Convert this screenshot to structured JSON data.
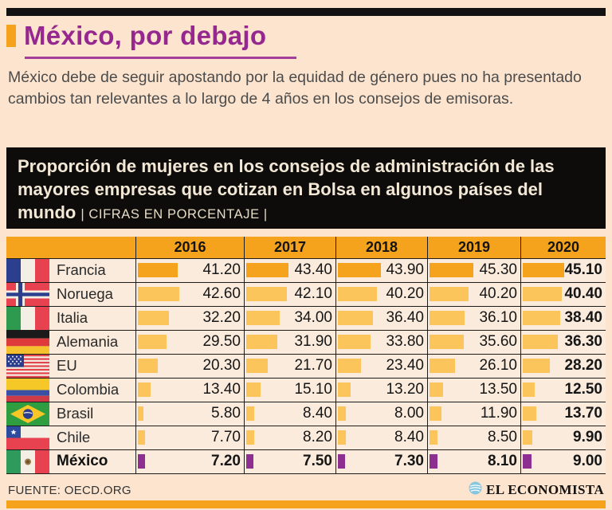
{
  "colors": {
    "accent_orange": "#F5A21C",
    "bar_light": "#FBC55C",
    "bar_leader": "#F5A21C",
    "bar_mexico": "#8C2F90",
    "title_magenta": "#96278F",
    "banner_bg": "#0D0C0A",
    "page_bg": "#FCE4CE",
    "cell_bg": "#FAEBDC",
    "logo_blue": "#85C7DE"
  },
  "header": {
    "title": "México, por debajo",
    "subtitle": "México debe de seguir apostando por la equidad de género pues no ha presentado cambios tan relevantes a lo largo de 4 años en los consejos de emisoras."
  },
  "banner": {
    "title": "Proporción de mujeres en los consejos de administración de las mayores empresas que cotizan en Bolsa en algunos países del mundo",
    "note": "| CIFRAS EN PORCENTAJE |"
  },
  "chart_data": {
    "type": "table",
    "title": "Proporción de mujeres en los consejos de administración de las mayores empresas que cotizan en Bolsa en algunos países del mundo",
    "unit": "porcentaje",
    "years": [
      "2016",
      "2017",
      "2018",
      "2019",
      "2020"
    ],
    "rows": [
      {
        "id": "francia",
        "country": "Francia",
        "values": [
          41.2,
          43.4,
          43.9,
          45.3,
          45.1
        ],
        "bar": "leader"
      },
      {
        "id": "noruega",
        "country": "Noruega",
        "values": [
          42.6,
          42.1,
          40.2,
          40.2,
          40.4
        ],
        "bar": "light"
      },
      {
        "id": "italia",
        "country": "Italia",
        "values": [
          32.2,
          34.0,
          36.4,
          36.1,
          38.4
        ],
        "bar": "light"
      },
      {
        "id": "alemania",
        "country": "Alemania",
        "values": [
          29.5,
          31.9,
          33.8,
          35.6,
          36.3
        ],
        "bar": "light"
      },
      {
        "id": "eu",
        "country": "EU",
        "values": [
          20.3,
          21.7,
          23.4,
          26.1,
          28.2
        ],
        "bar": "light"
      },
      {
        "id": "colombia",
        "country": "Colombia",
        "values": [
          13.4,
          15.1,
          13.2,
          13.5,
          12.5
        ],
        "bar": "light"
      },
      {
        "id": "brasil",
        "country": "Brasil",
        "values": [
          5.8,
          8.4,
          8.0,
          11.9,
          13.7
        ],
        "bar": "light"
      },
      {
        "id": "chile",
        "country": "Chile",
        "values": [
          7.7,
          8.2,
          8.4,
          8.5,
          9.9
        ],
        "bar": "light"
      },
      {
        "id": "mexico",
        "country": "México",
        "values": [
          7.2,
          7.5,
          7.3,
          8.1,
          9.0
        ],
        "bar": "mexico",
        "emphasis": true
      }
    ]
  },
  "footer": {
    "source": "FUENTE: OECD.ORG",
    "brand": "EL ECONOMISTA"
  }
}
